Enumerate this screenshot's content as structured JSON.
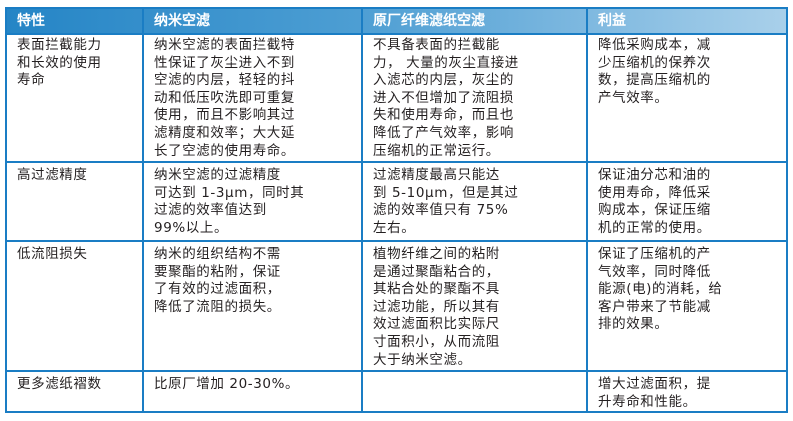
{
  "colors": {
    "border": "#1a7dc4",
    "header_start": "#2585c6",
    "header_end": "#a9d0ea",
    "header_text": "#ffffff"
  },
  "headers": [
    "特性",
    "纳米空滤",
    "原厂纤维滤纸空滤",
    "利益"
  ],
  "rows": [
    {
      "cells": [
        [
          "表面拦截能力",
          "和长效的使用",
          "寿命"
        ],
        [
          "纳米空滤的表面拦截特",
          "性保证了灰尘进入不到",
          "空滤的内层，轻轻的抖",
          "动和低压吹洗即可重复",
          "使用，而且不影响其过",
          "滤精度和效率；大大延",
          "长了空滤的使用寿命。"
        ],
        [
          "不具备表面的拦截能",
          "力， 大量的灰尘直接进",
          "入滤芯的内层，灰尘的",
          "进入不但增加了流阻损",
          "失和使用寿命，而且也",
          "降低了产气效率，影响",
          "压缩机的正常运行。"
        ],
        [
          "降低采购成本，减",
          "少压缩机的保养次",
          "数，提高压缩机的",
          "产气效率。"
        ]
      ]
    },
    {
      "cells": [
        [
          "高过滤精度"
        ],
        [
          "纳米空滤的过滤精度",
          "可达到 1-3μm，同时其",
          "过滤的效率值达到",
          "99%以上。"
        ],
        [
          "过滤精度最高只能达",
          "到 5-10μm，但是其过",
          "滤的效率值只有 75%",
          "左右。"
        ],
        [
          "保证油分芯和油的",
          "使用寿命，降低采",
          "购成本，保证压缩",
          "机的正常的使用。"
        ]
      ]
    },
    {
      "cells": [
        [
          "低流阻损失"
        ],
        [
          "纳米的组织结构不需",
          "要聚酯的粘附，保证",
          "了有效的过滤面积，",
          "降低了流阻的损失。"
        ],
        [
          "植物纤维之间的粘附",
          "是通过聚酯粘合的，",
          "其粘合处的聚酯不具",
          "过滤功能，所以其有",
          "效过滤面积比实际尺",
          "寸面积小，从而流阻",
          "大于纳米空滤。"
        ],
        [
          "保证了压缩机的产",
          "气效率，同时降低",
          "能源(电)的消耗，给",
          "客户带来了节能减",
          "排的效果。"
        ]
      ]
    },
    {
      "cells": [
        [
          "更多滤纸褶数"
        ],
        [
          "比原厂增加 20-30%。"
        ],
        [],
        [
          "增大过滤面积，提",
          "升寿命和性能。"
        ]
      ]
    }
  ]
}
